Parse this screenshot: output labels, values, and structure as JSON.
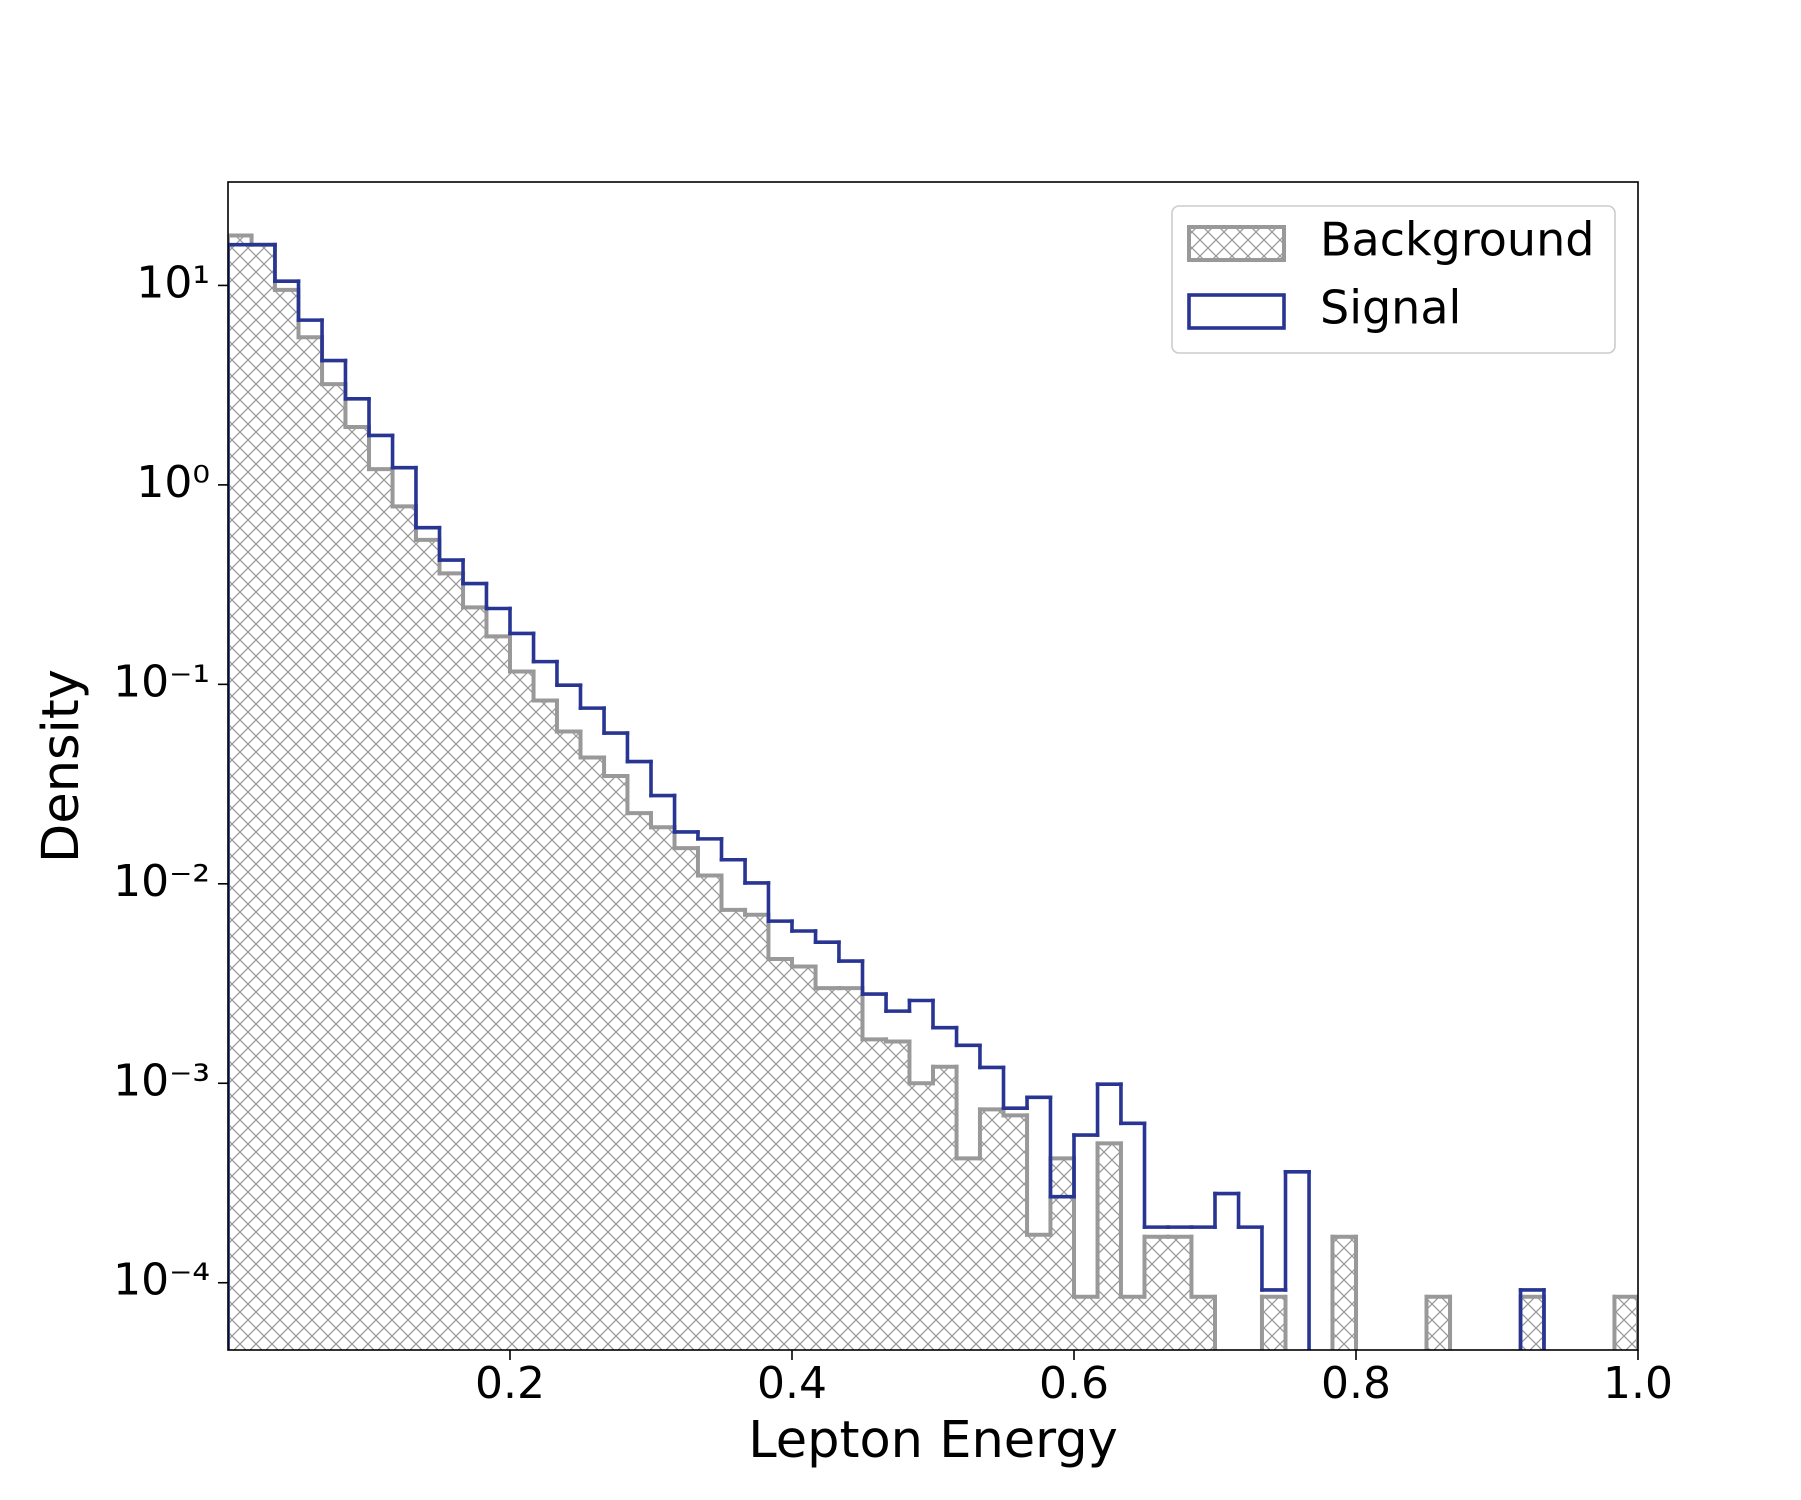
{
  "chart_data": {
    "type": "histogram",
    "xlabel": "Lepton Energy",
    "ylabel": "Density",
    "bins": [
      0,
      0.0167,
      0.0333,
      0.05,
      0.0667,
      0.0833,
      0.1,
      0.1167,
      0.1333,
      0.15,
      0.1667,
      0.1833,
      0.2,
      0.2167,
      0.2333,
      0.25,
      0.2667,
      0.2833,
      0.3,
      0.3167,
      0.3333,
      0.35,
      0.3667,
      0.3833,
      0.4,
      0.4167,
      0.4333,
      0.45,
      0.4667,
      0.4833,
      0.5,
      0.5167,
      0.5333,
      0.55,
      0.5667,
      0.5833,
      0.6,
      0.6167,
      0.6333,
      0.65,
      0.6667,
      0.6833,
      0.7,
      0.7167,
      0.7333,
      0.75,
      0.7667,
      0.7833,
      0.8,
      0.8167,
      0.8333,
      0.85,
      0.8667,
      0.8833,
      0.9,
      0.9167,
      0.9333,
      0.95,
      0.9667,
      0.9833,
      1
    ],
    "series": [
      {
        "name": "Background",
        "color": "#999999",
        "hatch": "xx",
        "values": [
          17.8,
          16,
          9.5,
          5.5,
          3.2,
          1.95,
          1.2,
          0.78,
          0.53,
          0.36,
          0.243,
          0.174,
          0.116,
          0.083,
          0.058,
          0.043,
          0.0347,
          0.0226,
          0.0192,
          0.0151,
          0.011,
          0.0074,
          0.007,
          0.0042,
          0.00385,
          0.003,
          0.003,
          0.00166,
          0.00162,
          0.001,
          0.00121,
          0.00042,
          0.00074,
          0.00069,
          0.000174,
          0.00042,
          8.5e-05,
          0.0005,
          8.5e-05,
          0.00017,
          0.00017,
          8.5e-05,
          0,
          0,
          8.5e-05,
          0,
          0,
          0.00017,
          0,
          0,
          0,
          8.5e-05,
          0,
          0,
          0,
          8.5e-05,
          0,
          0,
          0,
          8.5e-05
        ]
      },
      {
        "name": "Signal",
        "color": "#283593",
        "hatch": null,
        "values": [
          16,
          16,
          10.5,
          6.7,
          4.2,
          2.7,
          1.77,
          1.22,
          0.61,
          0.42,
          0.32,
          0.24,
          0.18,
          0.13,
          0.099,
          0.076,
          0.057,
          0.041,
          0.0277,
          0.0182,
          0.0168,
          0.0132,
          0.0101,
          0.0065,
          0.0058,
          0.0051,
          0.0041,
          0.0028,
          0.0023,
          0.0026,
          0.0019,
          0.00155,
          0.0012,
          0.00075,
          0.00085,
          0.00027,
          0.00055,
          0.00099,
          0.00063,
          0.00019,
          0.00019,
          0.00019,
          0.00028,
          0.00019,
          9.2e-05,
          0.00036,
          0,
          0,
          0,
          0,
          0,
          0,
          0,
          0,
          0,
          9.2e-05,
          0,
          0,
          0,
          0
        ]
      }
    ],
    "xlim": [
      0,
      1
    ],
    "xticks": [
      0.2,
      0.4,
      0.6,
      0.8,
      {
        "value": 1,
        "label": "1.0"
      }
    ],
    "ylim": [
      4.6e-05,
      33
    ],
    "yticks": [
      {
        "value": 0.0001,
        "label": "10⁻⁴"
      },
      {
        "value": 0.001,
        "label": "10⁻³"
      },
      {
        "value": 0.01,
        "label": "10⁻²"
      },
      {
        "value": 0.1,
        "label": "10⁻¹"
      },
      {
        "value": 1,
        "label": "10⁰"
      },
      {
        "value": 10,
        "label": "10¹"
      }
    ],
    "log_y": true,
    "grid": false,
    "legend": "upper right"
  }
}
